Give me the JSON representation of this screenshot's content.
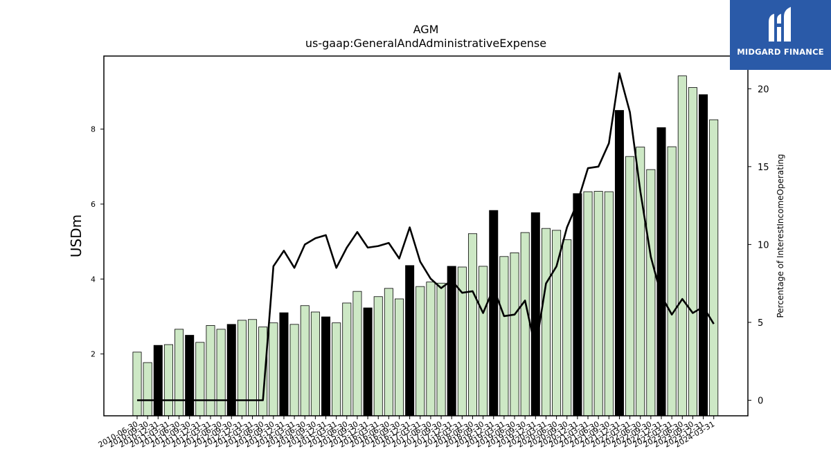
{
  "brand": {
    "name": "MIDGARD FINANCE",
    "color": "#2a5aa8"
  },
  "chart_data": {
    "type": "bar",
    "title": "AGM",
    "subtitle": "us-gaap:GeneralAndAdministrativeExpense",
    "ylabel": "USDm",
    "y2label": "Percentage of InterestIncomeOperating",
    "ylim": [
      0.35,
      9.95
    ],
    "y2lim": [
      -1.0,
      22.1
    ],
    "yticks": [
      2,
      4,
      6,
      8
    ],
    "y2ticks": [
      0,
      5,
      10,
      15,
      20
    ],
    "grid": false,
    "colors": {
      "bar": "#cde8c5",
      "bar_highlight": "#000000",
      "edge": "#000000",
      "line": "#000000"
    },
    "categories": [
      "2010-06-30",
      "2010-09-30",
      "2010-12-31",
      "2011-03-31",
      "2011-06-30",
      "2011-09-30",
      "2011-12-31",
      "2012-03-31",
      "2012-06-30",
      "2012-09-30",
      "2012-12-31",
      "2013-03-31",
      "2013-06-30",
      "2013-09-30",
      "2013-12-31",
      "2014-03-31",
      "2014-06-30",
      "2014-09-30",
      "2014-12-31",
      "2015-03-31",
      "2015-06-30",
      "2015-09-30",
      "2015-12-31",
      "2016-03-31",
      "2016-06-30",
      "2016-09-30",
      "2016-12-31",
      "2017-03-31",
      "2017-06-30",
      "2017-09-30",
      "2017-12-31",
      "2018-03-31",
      "2018-06-30",
      "2018-09-30",
      "2018-12-31",
      "2019-03-31",
      "2019-06-30",
      "2019-09-30",
      "2019-12-31",
      "2020-03-31",
      "2020-06-30",
      "2020-09-30",
      "2020-12-31",
      "2021-03-31",
      "2021-06-30",
      "2021-09-30",
      "2021-12-31",
      "2022-03-31",
      "2022-06-30",
      "2022-09-30",
      "2022-12-31",
      "2023-03-31",
      "2023-06-30",
      "2023-09-30",
      "2023-12-31",
      "2024-03-31"
    ],
    "tick_labels": [
      "2010-06-30",
      "2010-09-30",
      "2010-12-31",
      "2011-03-31",
      "2011-06-30",
      "2011-09-30",
      "2011-12-31",
      "2012-03-31",
      "2012-06-30",
      "2012-09-30",
      "2012-12-31",
      "2013-03-31",
      "2013-06-30",
      "2013-09-30",
      "2013-12-31",
      "2014-03-31",
      "2014-06-30",
      "2014-09-30",
      "2014-12-31",
      "2015-03-31",
      "2015-06-30",
      "2015-09-30",
      "2015-12-31",
      "2016-03-31",
      "2016-06-30",
      "2016-09-30",
      "2016-12-31",
      "2017-03-31",
      "2017-06-30",
      "2017-09-30",
      "2017-12-31",
      "2018-03-31",
      "2018-06-30",
      "2018-09-30",
      "2018-12-31",
      "2019-03-31",
      "2019-06-30",
      "2019-09-30",
      "2019-12-31",
      "2020-03-31",
      "2020-06-30",
      "2020-09-30",
      "2020-12-31",
      "2021-03-31",
      "2021-06-30",
      "2021-09-30",
      "2021-12-31",
      "2022-03-31",
      "2022-06-30",
      "2022-09-30",
      "2022-12-31",
      "2023-03-31",
      "2023-06-30",
      "2023-09-30",
      "2023-12-31",
      "2024-03-31"
    ],
    "series": [
      {
        "type": "bar",
        "axis": "left",
        "values": [
          2.05,
          1.77,
          2.23,
          2.25,
          2.66,
          2.5,
          2.31,
          2.76,
          2.66,
          2.79,
          2.9,
          2.92,
          2.72,
          2.83,
          3.1,
          2.79,
          3.29,
          3.12,
          2.99,
          2.83,
          3.36,
          3.67,
          3.23,
          3.53,
          3.75,
          3.47,
          4.36,
          3.8,
          3.92,
          3.89,
          4.34,
          4.32,
          5.21,
          4.34,
          5.83,
          4.6,
          4.7,
          5.24,
          5.77,
          5.35,
          5.3,
          5.05,
          6.28,
          6.33,
          6.34,
          6.33,
          8.5,
          7.27,
          7.52,
          6.92,
          8.04,
          7.53,
          9.42,
          9.11,
          8.92,
          8.25
        ],
        "highlight": [
          false,
          false,
          true,
          false,
          false,
          true,
          false,
          false,
          false,
          true,
          false,
          false,
          false,
          false,
          true,
          false,
          false,
          false,
          true,
          false,
          false,
          false,
          true,
          false,
          false,
          false,
          true,
          false,
          false,
          false,
          true,
          false,
          false,
          false,
          true,
          false,
          false,
          false,
          true,
          false,
          false,
          false,
          true,
          false,
          false,
          false,
          true,
          false,
          false,
          false,
          true,
          false,
          false,
          false,
          true,
          false
        ]
      },
      {
        "type": "line",
        "axis": "right",
        "values": [
          0,
          0,
          0,
          0,
          0,
          0,
          0,
          0,
          0,
          0,
          0,
          0,
          0,
          8.6,
          9.6,
          8.5,
          10.0,
          10.4,
          10.6,
          8.5,
          9.8,
          10.8,
          9.8,
          9.9,
          10.1,
          9.1,
          11.1,
          8.9,
          7.8,
          7.2,
          7.7,
          6.9,
          7.0,
          5.6,
          7.2,
          5.4,
          5.5,
          6.4,
          3.3,
          7.5,
          8.6,
          11.1,
          12.7,
          14.9,
          15.0,
          16.5,
          21.0,
          18.5,
          13.4,
          9.2,
          6.7,
          5.5,
          6.5,
          5.6,
          6.0,
          4.9
        ]
      }
    ]
  }
}
